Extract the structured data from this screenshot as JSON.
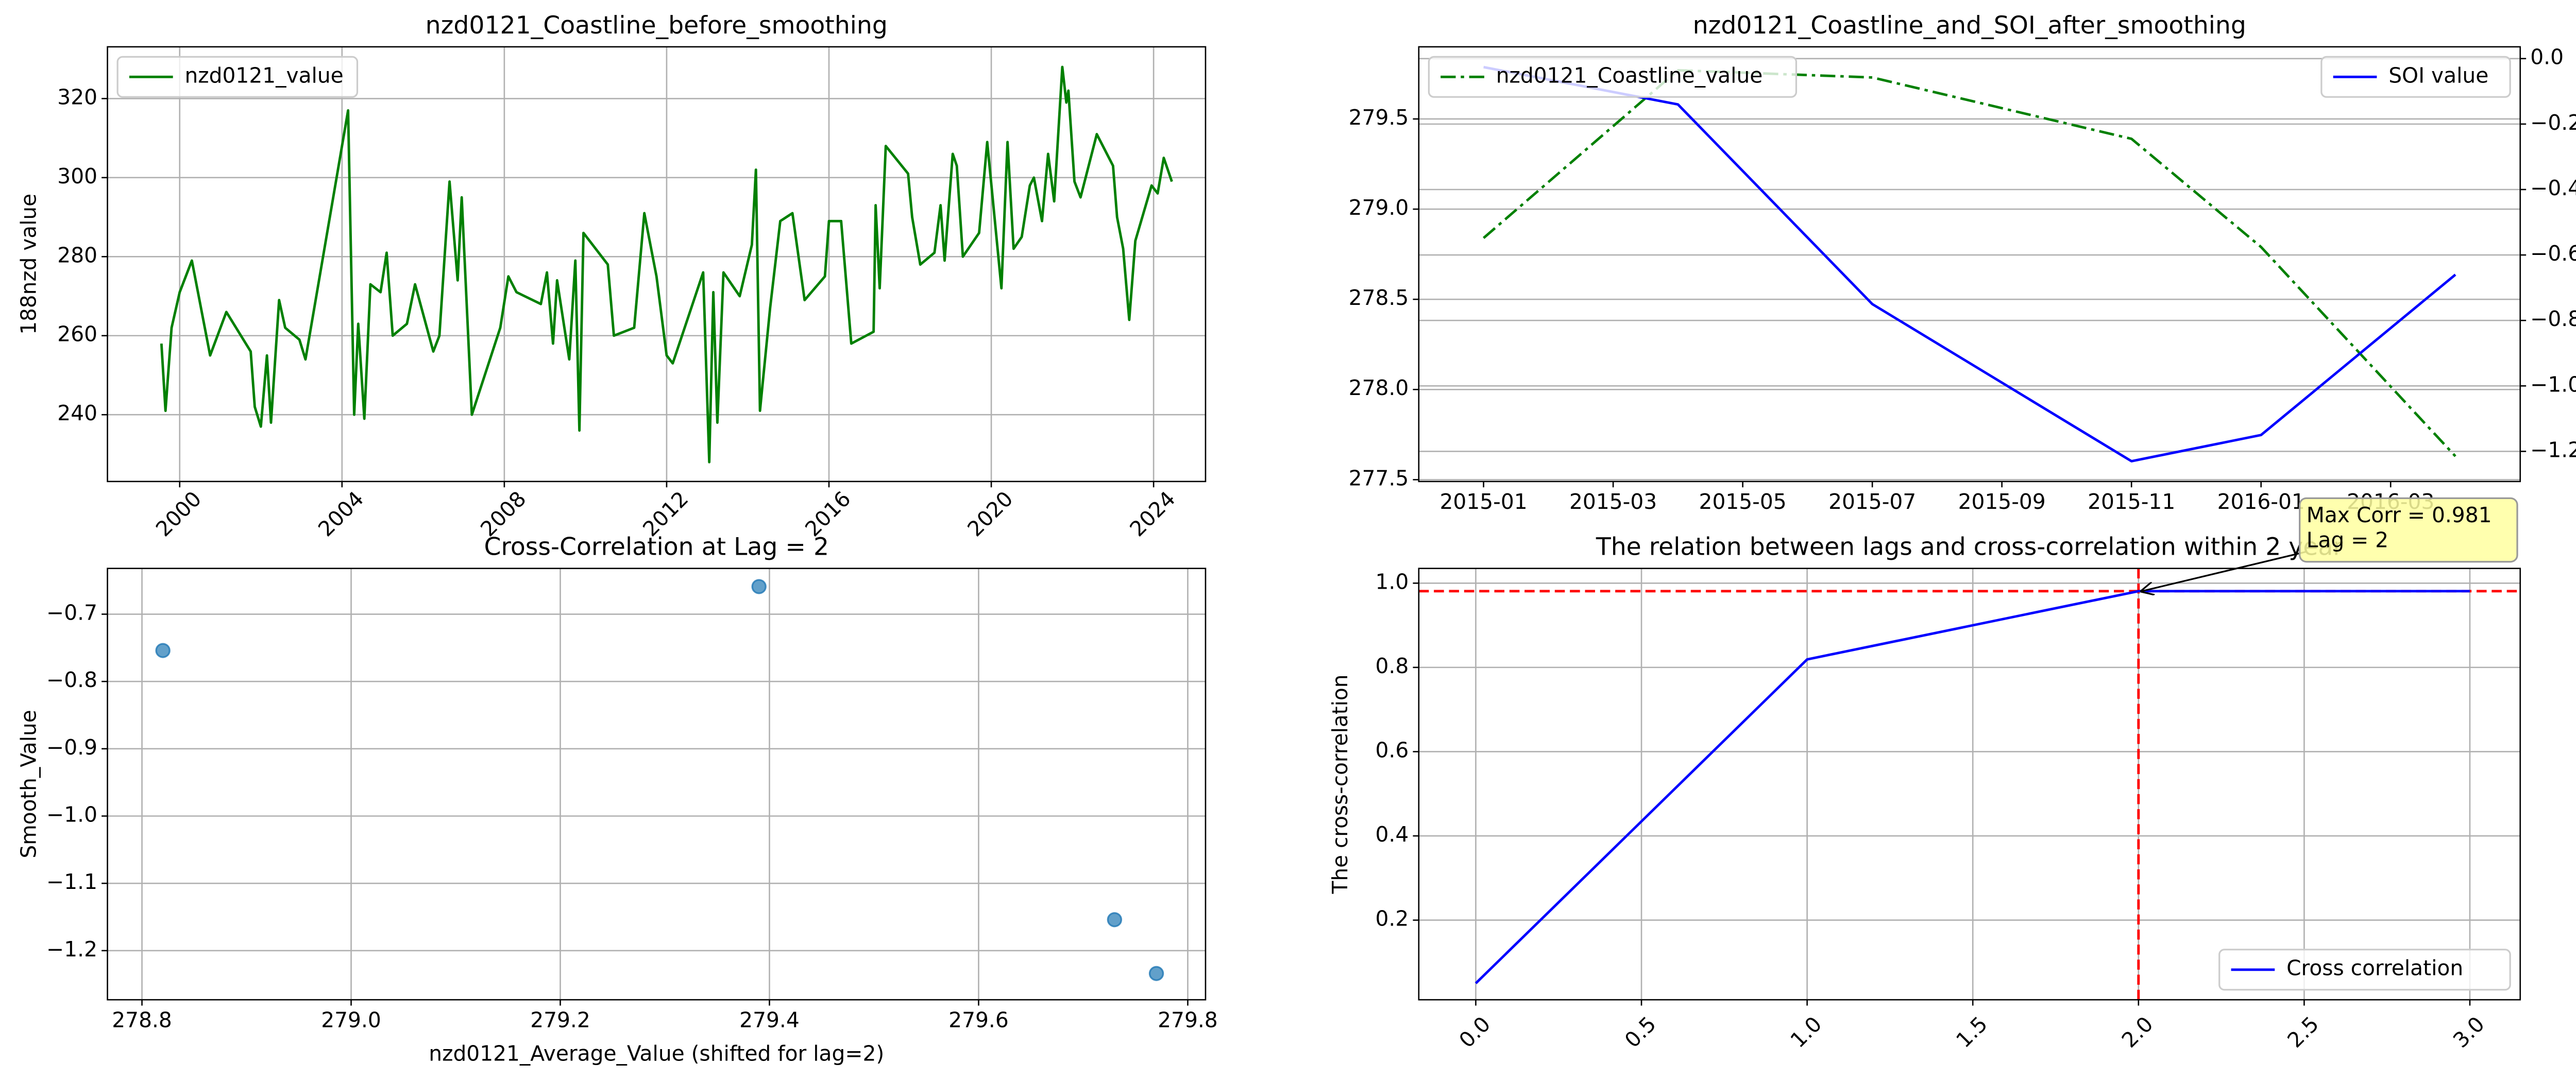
{
  "chart_data": [
    {
      "type": "line",
      "title": "nzd0121_Coastline_before_smoothing",
      "ylabel": "188nzd value",
      "x": [
        1999.55,
        1999.65,
        1999.8,
        2000.0,
        2000.3,
        2000.75,
        2001.15,
        2001.75,
        2001.85,
        2002.0,
        2002.15,
        2002.25,
        2002.45,
        2002.6,
        2002.95,
        2003.1,
        2004.15,
        2004.3,
        2004.4,
        2004.55,
        2004.7,
        2004.95,
        2005.1,
        2005.25,
        2005.6,
        2005.8,
        2006.25,
        2006.4,
        2006.65,
        2006.85,
        2006.95,
        2007.2,
        2007.9,
        2008.1,
        2008.3,
        2008.9,
        2009.05,
        2009.2,
        2009.3,
        2009.6,
        2009.75,
        2009.85,
        2009.95,
        2010.55,
        2010.7,
        2011.2,
        2011.45,
        2011.75,
        2012.0,
        2012.15,
        2012.9,
        2013.05,
        2013.15,
        2013.25,
        2013.4,
        2013.8,
        2014.1,
        2014.2,
        2014.3,
        2014.55,
        2014.8,
        2015.1,
        2015.4,
        2015.9,
        2016.0,
        2016.3,
        2016.55,
        2017.1,
        2017.15,
        2017.25,
        2017.4,
        2017.95,
        2018.05,
        2018.25,
        2018.6,
        2018.75,
        2018.85,
        2019.05,
        2019.15,
        2019.3,
        2019.7,
        2019.9,
        2020.25,
        2020.4,
        2020.55,
        2020.75,
        2020.95,
        2021.05,
        2021.25,
        2021.4,
        2021.55,
        2021.75,
        2021.85,
        2021.9,
        2022.05,
        2022.2,
        2022.6,
        2023.0,
        2023.1,
        2023.25,
        2023.4,
        2023.55,
        2023.95,
        2024.1,
        2024.25,
        2024.45
      ],
      "series": [
        {
          "name": "nzd0121_value",
          "color": "#008000",
          "style": "solid",
          "values": [
            258,
            241,
            262,
            271,
            279,
            255,
            266,
            256,
            242,
            237,
            255,
            238,
            269,
            262,
            259,
            254,
            317,
            240,
            263,
            239,
            273,
            271,
            281,
            260,
            263,
            273,
            256,
            260,
            299,
            274,
            295,
            240,
            262,
            275,
            271,
            268,
            276,
            258,
            274,
            254,
            279,
            236,
            286,
            278,
            260,
            262,
            291,
            275,
            255,
            253,
            276,
            228,
            271,
            238,
            276,
            270,
            283,
            302,
            241,
            267,
            289,
            291,
            269,
            275,
            289,
            289,
            258,
            261,
            293,
            272,
            308,
            301,
            290,
            278,
            281,
            293,
            279,
            306,
            303,
            280,
            286,
            309,
            272,
            309,
            282,
            285,
            298,
            300,
            289,
            306,
            294,
            328,
            319,
            322,
            299,
            295,
            311,
            303,
            290,
            282,
            264,
            284,
            298,
            296,
            305,
            299
          ]
        }
      ],
      "xlim": [
        1998.22,
        2025.28
      ],
      "xticks": [
        2000,
        2004,
        2008,
        2012,
        2016,
        2020,
        2024
      ],
      "xtick_rotation": 45,
      "ylim": [
        223.1,
        333.1
      ],
      "yticks": [
        240,
        260,
        280,
        300,
        320
      ],
      "grid": "both",
      "legend": "upper left"
    },
    {
      "type": "line",
      "title": "nzd0121_Coastline_and_SOI_after_smoothing",
      "y2label": "SOI value",
      "x": [
        "2015-01",
        "2015-04",
        "2015-07",
        "2015-11",
        "2016-01",
        "2016-04"
      ],
      "series": [
        {
          "name": "nzd0121_Coastline_value",
          "color": "#008000",
          "style": "dashdot",
          "values": [
            278.84,
            279.77,
            279.73,
            279.39,
            278.79,
            277.63
          ]
        },
        {
          "name": "SOI value",
          "color": "#0000ff",
          "style": "solid",
          "axis": "y2",
          "values": [
            -0.026,
            -0.14,
            -0.75,
            -1.23,
            -1.15,
            -0.66
          ]
        }
      ],
      "xlim": [
        "2014-12",
        "2016-05"
      ],
      "xticks": [
        "2015-01",
        "2015-03",
        "2015-05",
        "2015-07",
        "2015-09",
        "2015-11",
        "2016-01",
        "2016-03"
      ],
      "ylim": [
        277.49,
        279.9
      ],
      "yticks": [
        {
          "value": 277.5,
          "label": "277.5"
        },
        {
          "value": 278,
          "label": "278.0"
        },
        {
          "value": 278.5,
          "label": "278.5"
        },
        {
          "value": 279,
          "label": "279.0"
        },
        {
          "value": 279.5,
          "label": "279.5"
        }
      ],
      "y2lim": [
        -1.292,
        0.036
      ],
      "y2ticks": [
        {
          "value": 0,
          "label": "0.0"
        },
        {
          "value": -0.2,
          "label": "−0.2"
        },
        {
          "value": -0.4,
          "label": "−0.4"
        },
        {
          "value": -0.6,
          "label": "−0.6"
        },
        {
          "value": -0.8,
          "label": "−0.8"
        },
        {
          "value": -1,
          "label": "−1.0"
        },
        {
          "value": -1.2,
          "label": "−1.2"
        }
      ],
      "grid": "y",
      "legend": "upper left",
      "y2_legend": "upper right"
    },
    {
      "type": "scatter",
      "title": "Cross-Correlation at Lag = 2",
      "xlabel": "nzd0121_Average_Value (shifted for lag=2)",
      "ylabel": "Smooth_Value",
      "x": [
        278.82,
        279.39,
        279.73,
        279.77
      ],
      "values": [
        -0.754,
        -0.659,
        -1.154,
        -1.234
      ],
      "color": "#1f77b4",
      "xlim": [
        278.767,
        279.817
      ],
      "xticks": [
        {
          "value": 278.8,
          "label": "278.8"
        },
        {
          "value": 279,
          "label": "279.0"
        },
        {
          "value": 279.2,
          "label": "279.2"
        },
        {
          "value": 279.4,
          "label": "279.4"
        },
        {
          "value": 279.6,
          "label": "279.6"
        },
        {
          "value": 279.8,
          "label": "279.8"
        }
      ],
      "ylim": [
        -1.273,
        -0.632
      ],
      "yticks": [
        {
          "value": -0.7,
          "label": "−0.7"
        },
        {
          "value": -0.8,
          "label": "−0.8"
        },
        {
          "value": -0.9,
          "label": "−0.9"
        },
        {
          "value": -1,
          "label": "−1.0"
        },
        {
          "value": -1.1,
          "label": "−1.1"
        },
        {
          "value": -1.2,
          "label": "−1.2"
        }
      ],
      "grid": "both"
    },
    {
      "type": "line",
      "title": "The relation between lags and cross-correlation within 2 year",
      "ylabel": "The cross-correlation",
      "x": [
        0,
        1,
        2,
        3
      ],
      "series": [
        {
          "name": "Cross correlation",
          "color": "#0000ff",
          "style": "solid",
          "values": [
            0.05,
            0.819,
            0.981,
            0.981
          ]
        }
      ],
      "xlim": [
        -0.172,
        3.152
      ],
      "xticks": [
        {
          "value": 0,
          "label": "0.0"
        },
        0.5,
        {
          "value": 1,
          "label": "1.0"
        },
        1.5,
        {
          "value": 2,
          "label": "2.0"
        },
        2.5,
        {
          "value": 3,
          "label": "3.0"
        }
      ],
      "xtick_rotation": 45,
      "ylim": [
        0.011,
        1.035
      ],
      "yticks": [
        0.2,
        0.4,
        0.6,
        0.8,
        {
          "value": 1,
          "label": "1.0"
        }
      ],
      "grid": "both",
      "legend": "lower right",
      "hline": 0.981,
      "vline": 2,
      "reference_color": "#ff0000",
      "annotation": {
        "lines": [
          "Max Corr = 0.981",
          "Lag = 2"
        ]
      }
    }
  ]
}
